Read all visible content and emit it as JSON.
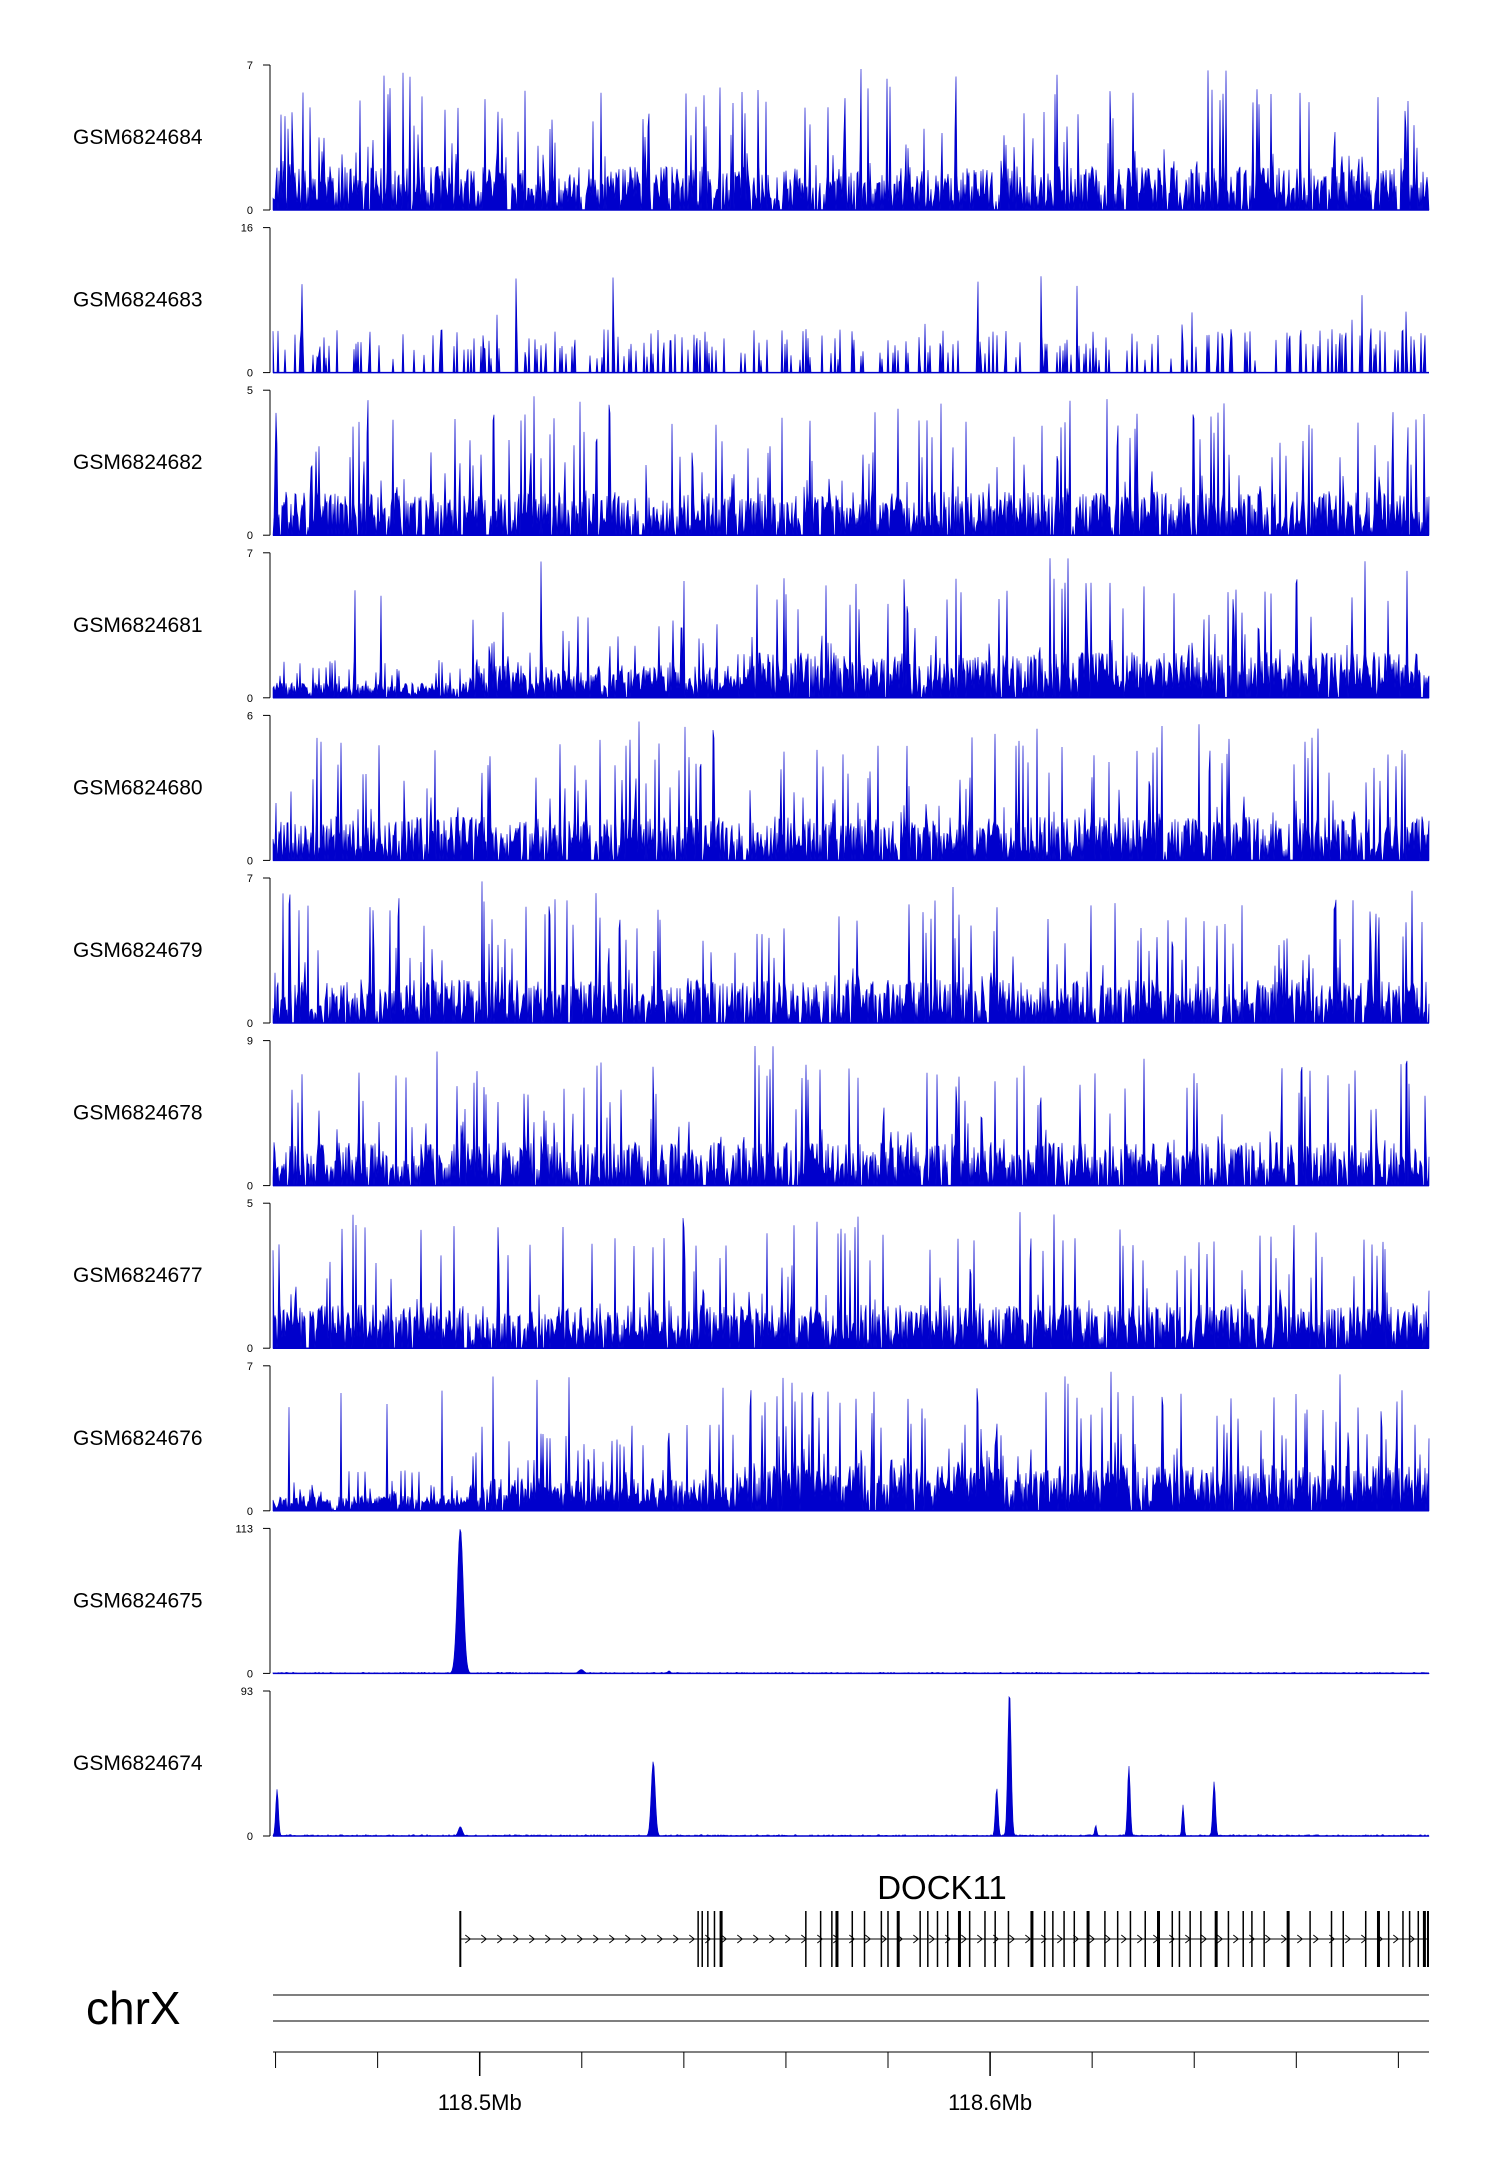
{
  "colors": {
    "signal": "#0000cc",
    "axis": "#000000",
    "gene": "#000000",
    "chrom_line": "#555555"
  },
  "chart_data": {
    "type": "area",
    "title": "",
    "tracks": [
      {
        "name": "GSM6824684",
        "ymax": "7",
        "ymin": "0",
        "pattern": "noise",
        "seed": 1,
        "density": 0.82,
        "peak_frac": 0.55
      },
      {
        "name": "GSM6824683",
        "ymax": "16",
        "ymin": "0",
        "pattern": "sparse",
        "seed": 2,
        "density": 0.22,
        "peak_frac": 0.45
      },
      {
        "name": "GSM6824682",
        "ymax": "5",
        "ymin": "0",
        "pattern": "noise",
        "seed": 3,
        "density": 0.8,
        "peak_frac": 0.55
      },
      {
        "name": "GSM6824681",
        "ymax": "7",
        "ymin": "0",
        "pattern": "ramp",
        "seed": 4,
        "density": 0.9,
        "peak_frac": 0.5
      },
      {
        "name": "GSM6824680",
        "ymax": "6",
        "ymin": "0",
        "pattern": "noise",
        "seed": 5,
        "density": 0.82,
        "peak_frac": 0.55
      },
      {
        "name": "GSM6824679",
        "ymax": "7",
        "ymin": "0",
        "pattern": "noise",
        "seed": 6,
        "density": 0.8,
        "peak_frac": 0.55
      },
      {
        "name": "GSM6824678",
        "ymax": "9",
        "ymin": "0",
        "pattern": "noise",
        "seed": 7,
        "density": 0.8,
        "peak_frac": 0.55
      },
      {
        "name": "GSM6824677",
        "ymax": "5",
        "ymin": "0",
        "pattern": "noise",
        "seed": 8,
        "density": 0.85,
        "peak_frac": 0.55
      },
      {
        "name": "GSM6824676",
        "ymax": "7",
        "ymin": "0",
        "pattern": "ramp",
        "seed": 9,
        "density": 0.9,
        "peak_frac": 0.5
      },
      {
        "name": "GSM6824675",
        "ymax": "113",
        "ymin": "0",
        "pattern": "peaks",
        "seed": 10,
        "peaks": [
          {
            "pos": 118.4962,
            "height": 113,
            "width": 0.0009
          },
          {
            "pos": 118.5199,
            "height": 3,
            "width": 0.0008
          },
          {
            "pos": 118.5371,
            "height": 2,
            "width": 0.0004
          }
        ]
      },
      {
        "name": "GSM6824674",
        "ymax": "93",
        "ymin": "0",
        "pattern": "peaks",
        "seed": 11,
        "peaks": [
          {
            "pos": 118.4603,
            "height": 30,
            "width": 0.0004
          },
          {
            "pos": 118.4962,
            "height": 6,
            "width": 0.0006
          },
          {
            "pos": 118.534,
            "height": 48,
            "width": 0.0006
          },
          {
            "pos": 118.6013,
            "height": 31,
            "width": 0.0004
          },
          {
            "pos": 118.6038,
            "height": 93,
            "width": 0.0005
          },
          {
            "pos": 118.6207,
            "height": 7,
            "width": 0.0003
          },
          {
            "pos": 118.6272,
            "height": 45,
            "width": 0.0004
          },
          {
            "pos": 118.6378,
            "height": 20,
            "width": 0.0003
          },
          {
            "pos": 118.6439,
            "height": 35,
            "width": 0.0004
          }
        ]
      }
    ],
    "x_range_mb": [
      118.4595,
      118.686
    ],
    "gene": {
      "name": "DOCK11",
      "start_mb": 118.4962,
      "end_mb": 118.686,
      "strand": "+",
      "exons_mb": [
        118.4962,
        118.5428,
        118.5436,
        118.5447,
        118.546,
        118.5473,
        118.5472,
        118.5639,
        118.5668,
        118.569,
        118.57,
        118.573,
        118.5754,
        118.5787,
        118.58,
        118.582,
        118.5863,
        118.5878,
        118.5897,
        118.5917,
        118.594,
        118.596,
        118.599,
        118.601,
        118.6036,
        118.6082,
        118.6107,
        118.6123,
        118.6145,
        118.6165,
        118.6192,
        118.6225,
        118.625,
        118.6275,
        118.6304,
        118.633,
        118.6357,
        118.6371,
        118.6392,
        118.6413,
        118.6443,
        118.6467,
        118.6496,
        118.6513,
        118.6537,
        118.6584,
        118.6627,
        118.6669,
        118.6692,
        118.6736,
        118.6761,
        118.6781,
        118.6809,
        118.6822,
        118.6839,
        118.6851,
        118.6858
      ]
    },
    "chromosome": "chrX",
    "axis_ticks_mb": [
      118.46,
      118.48,
      118.5,
      118.52,
      118.54,
      118.56,
      118.58,
      118.6,
      118.62,
      118.64,
      118.66,
      118.68
    ],
    "axis_labels": [
      {
        "pos": 118.5,
        "text": "118.5Mb"
      },
      {
        "pos": 118.6,
        "text": "118.6Mb"
      }
    ]
  }
}
